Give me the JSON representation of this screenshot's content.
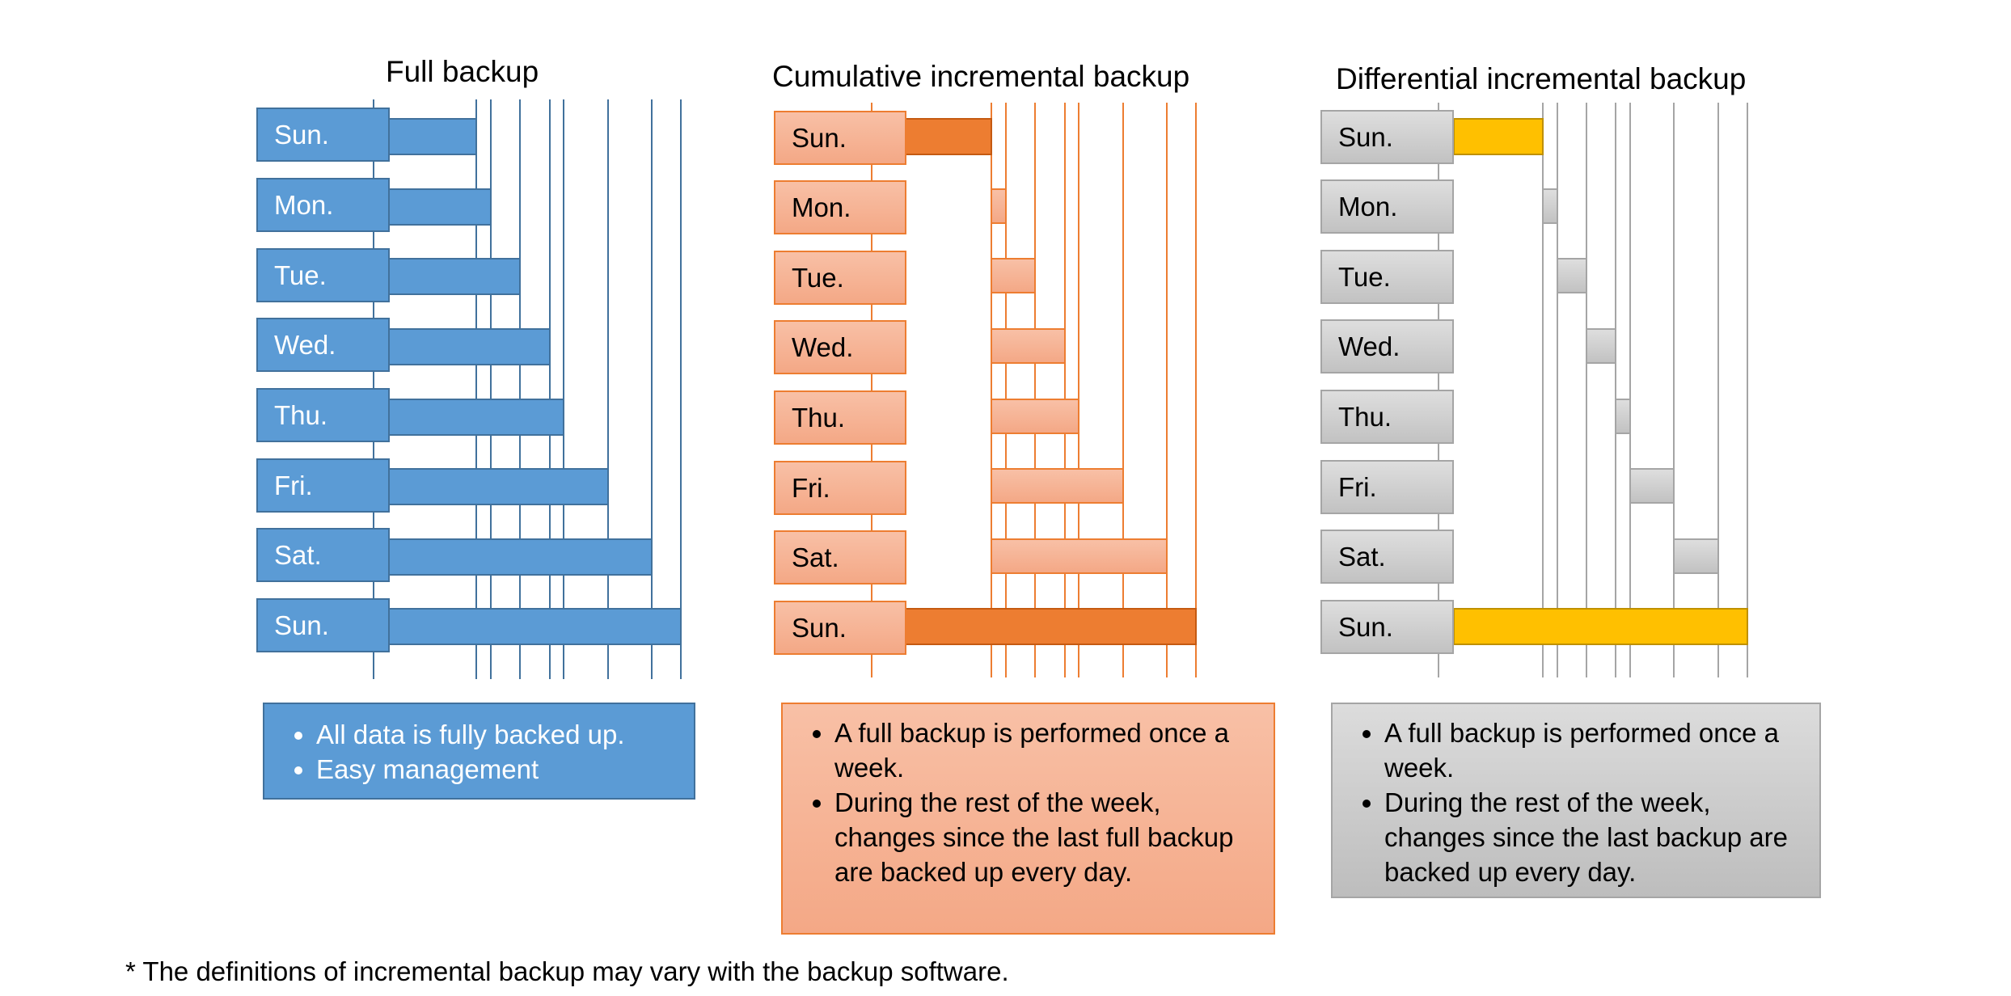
{
  "panels": [
    {
      "id": "full",
      "title": "Full backup",
      "days": [
        "Sun.",
        "Mon.",
        "Tue.",
        "Wed.",
        "Thu.",
        "Fri.",
        "Sat.",
        "Sun."
      ],
      "notes": [
        "All data is fully backed up.",
        "Easy management"
      ],
      "colors": {
        "fill": "#5b9bd5",
        "border": "#41719c",
        "label_text": "#ffffff"
      }
    },
    {
      "id": "cum",
      "title": "Cumulative incremental backup",
      "days": [
        "Sun.",
        "Mon.",
        "Tue.",
        "Wed.",
        "Thu.",
        "Fri.",
        "Sat.",
        "Sun."
      ],
      "notes": [
        "A full backup is performed once a week.",
        "During the rest of the week, changes since the last full backup are backed up every day."
      ],
      "colors": {
        "fill": "#f4b183",
        "full_backup_bar": "#ed7d31",
        "border": "#ed7d31"
      }
    },
    {
      "id": "diff",
      "title": "Differential incremental backup",
      "days": [
        "Sun.",
        "Mon.",
        "Tue.",
        "Wed.",
        "Thu.",
        "Fri.",
        "Sat.",
        "Sun."
      ],
      "notes": [
        "A full backup is performed once a week.",
        "During the rest of the week, changes since the last backup are backed up every day."
      ],
      "colors": {
        "fill": "#d0d0d0",
        "full_backup_bar": "#ffc000",
        "border": "#a5a5a5"
      }
    }
  ],
  "footnote": "* The definitions of incremental backup may vary with the backup software."
}
